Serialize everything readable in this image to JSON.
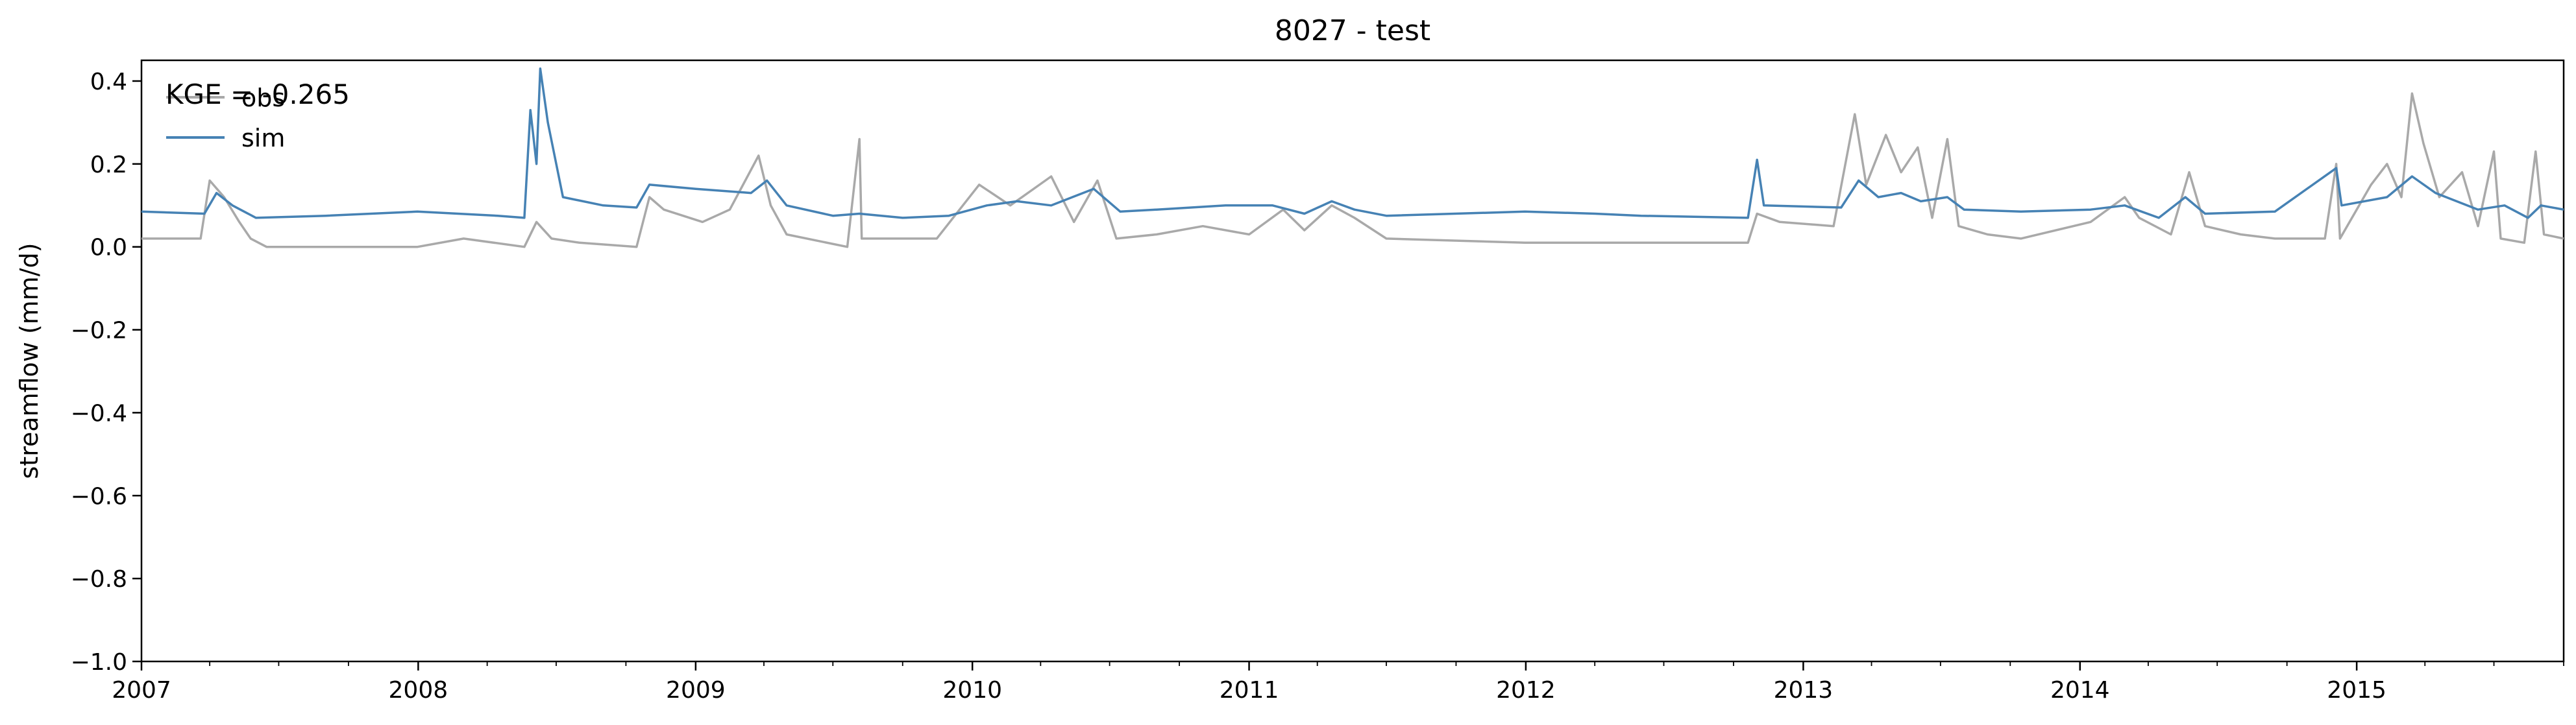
{
  "chart_data": {
    "type": "line",
    "title": "8027 - test",
    "xlabel": "",
    "ylabel": "streamflow (mm/d)",
    "ylim": [
      -1.0,
      0.45
    ],
    "xlim": [
      "2007-01-01",
      "2015-10-01"
    ],
    "x_ticks": [
      "2007",
      "2008",
      "2009",
      "2010",
      "2011",
      "2012",
      "2013",
      "2014",
      "2015"
    ],
    "y_ticks": [
      "−1.0",
      "−0.8",
      "−0.6",
      "−0.4",
      "−0.2",
      "0.0",
      "0.2",
      "0.4"
    ],
    "y_tick_values": [
      -1.0,
      -0.8,
      -0.6,
      -0.4,
      -0.2,
      0.0,
      0.2,
      0.4
    ],
    "annotation": "KGE = -0.265",
    "legend": {
      "position": "top-left",
      "entries": [
        "obs",
        "sim"
      ]
    },
    "grid": false,
    "series": [
      {
        "name": "obs",
        "color": "#a9a9a9",
        "points": [
          [
            "2007-01-01",
            0.02
          ],
          [
            "2007-03-20",
            0.02
          ],
          [
            "2007-04-01",
            0.16
          ],
          [
            "2007-04-20",
            0.12
          ],
          [
            "2007-05-10",
            0.06
          ],
          [
            "2007-05-25",
            0.02
          ],
          [
            "2007-06-15",
            0.0
          ],
          [
            "2007-12-31",
            0.0
          ],
          [
            "2008-03-01",
            0.02
          ],
          [
            "2008-05-20",
            0.0
          ],
          [
            "2008-06-05",
            0.06
          ],
          [
            "2008-06-25",
            0.02
          ],
          [
            "2008-08-01",
            0.01
          ],
          [
            "2008-10-15",
            0.0
          ],
          [
            "2008-11-01",
            0.12
          ],
          [
            "2008-11-20",
            0.09
          ],
          [
            "2009-01-10",
            0.06
          ],
          [
            "2009-02-15",
            0.09
          ],
          [
            "2009-03-25",
            0.22
          ],
          [
            "2009-04-10",
            0.1
          ],
          [
            "2009-05-01",
            0.03
          ],
          [
            "2009-07-20",
            0.0
          ],
          [
            "2009-08-05",
            0.26
          ],
          [
            "2009-08-08",
            0.02
          ],
          [
            "2009-11-15",
            0.02
          ],
          [
            "2010-01-10",
            0.15
          ],
          [
            "2010-02-20",
            0.1
          ],
          [
            "2010-04-15",
            0.17
          ],
          [
            "2010-05-15",
            0.06
          ],
          [
            "2010-06-15",
            0.16
          ],
          [
            "2010-07-10",
            0.02
          ],
          [
            "2010-09-01",
            0.03
          ],
          [
            "2010-11-01",
            0.05
          ],
          [
            "2011-01-01",
            0.03
          ],
          [
            "2011-02-15",
            0.09
          ],
          [
            "2011-03-15",
            0.04
          ],
          [
            "2011-04-20",
            0.1
          ],
          [
            "2011-05-20",
            0.07
          ],
          [
            "2011-07-01",
            0.02
          ],
          [
            "2011-12-31",
            0.01
          ],
          [
            "2012-06-01",
            0.01
          ],
          [
            "2012-10-20",
            0.01
          ],
          [
            "2012-11-01",
            0.08
          ],
          [
            "2012-12-01",
            0.06
          ],
          [
            "2013-02-10",
            0.05
          ],
          [
            "2013-03-10",
            0.32
          ],
          [
            "2013-03-25",
            0.15
          ],
          [
            "2013-04-20",
            0.27
          ],
          [
            "2013-05-10",
            0.18
          ],
          [
            "2013-06-01",
            0.24
          ],
          [
            "2013-06-20",
            0.07
          ],
          [
            "2013-07-10",
            0.26
          ],
          [
            "2013-07-25",
            0.05
          ],
          [
            "2013-09-01",
            0.03
          ],
          [
            "2013-10-15",
            0.02
          ],
          [
            "2014-01-15",
            0.06
          ],
          [
            "2014-03-01",
            0.12
          ],
          [
            "2014-03-20",
            0.07
          ],
          [
            "2014-05-01",
            0.03
          ],
          [
            "2014-05-25",
            0.18
          ],
          [
            "2014-06-15",
            0.05
          ],
          [
            "2014-08-01",
            0.03
          ],
          [
            "2014-09-15",
            0.02
          ],
          [
            "2014-11-20",
            0.02
          ],
          [
            "2014-12-05",
            0.2
          ],
          [
            "2014-12-10",
            0.02
          ],
          [
            "2015-01-20",
            0.15
          ],
          [
            "2015-02-10",
            0.2
          ],
          [
            "2015-03-01",
            0.12
          ],
          [
            "2015-03-15",
            0.37
          ],
          [
            "2015-03-30",
            0.25
          ],
          [
            "2015-04-20",
            0.12
          ],
          [
            "2015-05-20",
            0.18
          ],
          [
            "2015-06-10",
            0.05
          ],
          [
            "2015-07-01",
            0.23
          ],
          [
            "2015-07-10",
            0.02
          ],
          [
            "2015-08-10",
            0.01
          ],
          [
            "2015-08-25",
            0.23
          ],
          [
            "2015-09-05",
            0.03
          ],
          [
            "2015-10-01",
            0.02
          ]
        ]
      },
      {
        "name": "sim",
        "color": "#4682b4",
        "points": [
          [
            "2007-01-01",
            0.085
          ],
          [
            "2007-03-25",
            0.08
          ],
          [
            "2007-04-10",
            0.13
          ],
          [
            "2007-05-01",
            0.1
          ],
          [
            "2007-06-01",
            0.07
          ],
          [
            "2007-09-01",
            0.075
          ],
          [
            "2007-12-31",
            0.085
          ],
          [
            "2008-04-15",
            0.075
          ],
          [
            "2008-05-20",
            0.07
          ],
          [
            "2008-05-28",
            0.33
          ],
          [
            "2008-06-05",
            0.2
          ],
          [
            "2008-06-10",
            0.43
          ],
          [
            "2008-06-20",
            0.3
          ],
          [
            "2008-07-10",
            0.12
          ],
          [
            "2008-09-01",
            0.1
          ],
          [
            "2008-10-15",
            0.095
          ],
          [
            "2008-11-01",
            0.15
          ],
          [
            "2009-01-01",
            0.14
          ],
          [
            "2009-03-15",
            0.13
          ],
          [
            "2009-04-05",
            0.16
          ],
          [
            "2009-05-01",
            0.1
          ],
          [
            "2009-07-01",
            0.075
          ],
          [
            "2009-08-05",
            0.08
          ],
          [
            "2009-10-01",
            0.07
          ],
          [
            "2009-12-01",
            0.075
          ],
          [
            "2010-01-20",
            0.1
          ],
          [
            "2010-03-01",
            0.11
          ],
          [
            "2010-04-15",
            0.1
          ],
          [
            "2010-06-10",
            0.14
          ],
          [
            "2010-07-15",
            0.085
          ],
          [
            "2010-09-01",
            0.09
          ],
          [
            "2010-12-01",
            0.1
          ],
          [
            "2011-02-01",
            0.1
          ],
          [
            "2011-03-15",
            0.08
          ],
          [
            "2011-04-20",
            0.11
          ],
          [
            "2011-05-20",
            0.09
          ],
          [
            "2011-07-01",
            0.075
          ],
          [
            "2011-12-31",
            0.085
          ],
          [
            "2012-04-01",
            0.08
          ],
          [
            "2012-06-01",
            0.075
          ],
          [
            "2012-10-20",
            0.07
          ],
          [
            "2012-11-01",
            0.21
          ],
          [
            "2012-11-10",
            0.1
          ],
          [
            "2013-02-20",
            0.095
          ],
          [
            "2013-03-15",
            0.16
          ],
          [
            "2013-04-10",
            0.12
          ],
          [
            "2013-05-10",
            0.13
          ],
          [
            "2013-06-05",
            0.11
          ],
          [
            "2013-07-10",
            0.12
          ],
          [
            "2013-08-01",
            0.09
          ],
          [
            "2013-10-15",
            0.085
          ],
          [
            "2014-01-15",
            0.09
          ],
          [
            "2014-03-01",
            0.1
          ],
          [
            "2014-04-15",
            0.07
          ],
          [
            "2014-05-20",
            0.12
          ],
          [
            "2014-06-15",
            0.08
          ],
          [
            "2014-09-15",
            0.085
          ],
          [
            "2014-12-05",
            0.19
          ],
          [
            "2014-12-12",
            0.1
          ],
          [
            "2015-02-10",
            0.12
          ],
          [
            "2015-03-15",
            0.17
          ],
          [
            "2015-04-15",
            0.13
          ],
          [
            "2015-06-10",
            0.09
          ],
          [
            "2015-07-15",
            0.1
          ],
          [
            "2015-08-15",
            0.07
          ],
          [
            "2015-09-01",
            0.1
          ],
          [
            "2015-10-01",
            0.09
          ]
        ]
      }
    ]
  }
}
